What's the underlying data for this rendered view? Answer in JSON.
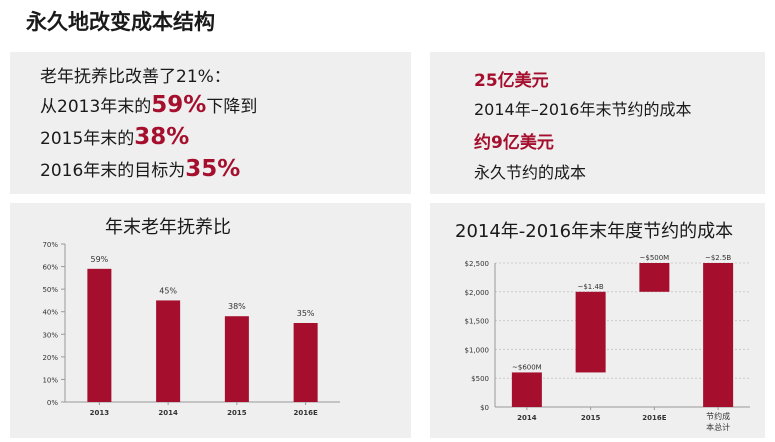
{
  "page": {
    "title": "永久地改变成本结构"
  },
  "left_summary": {
    "line1": "老年抚养比改善了21%：",
    "line2_pre": "从2013年末的",
    "line2_big": "59%",
    "line2_post": "下降到",
    "line3_pre": "2015年末的",
    "line3_big": "38%",
    "line4_pre": "2016年末的目标为",
    "line4_big": "35%"
  },
  "right_summary": {
    "line1": "25亿美元",
    "line2": "2014年–2016年末节约的成本",
    "line3": "约9亿美元",
    "line4": "永久节约的成本"
  },
  "colors": {
    "accent": "#a50f2d",
    "bar": "#a50f2d",
    "panel_bg": "#efefef"
  },
  "chart_data": [
    {
      "type": "bar",
      "title": "年末老年抚养比",
      "categories": [
        "2013",
        "2014",
        "2015",
        "2016E"
      ],
      "values": [
        59,
        45,
        38,
        35
      ],
      "data_labels": [
        "59%",
        "45%",
        "38%",
        "35%"
      ],
      "y_ticks": [
        "0%",
        "10%",
        "20%",
        "30%",
        "40%",
        "50%",
        "60%",
        "70%"
      ],
      "ylim": [
        0,
        70
      ],
      "grid": false,
      "legend": "none"
    },
    {
      "type": "bar",
      "title": "2014年-2016年末年度节约的成本",
      "categories": [
        "2014",
        "2015",
        "2016E",
        "节约成本总计"
      ],
      "bars": [
        {
          "low": 0,
          "high": 600
        },
        {
          "low": 600,
          "high": 2000
        },
        {
          "low": 2000,
          "high": 2500
        },
        {
          "low": 0,
          "high": 2500
        }
      ],
      "data_labels": [
        "~$600M",
        "~$1.4B",
        "~$500M",
        "~$2.5B"
      ],
      "y_ticks": [
        "$0",
        "$500",
        "$1,000",
        "$1,500",
        "$2,000",
        "$2,500"
      ],
      "ylim": [
        0,
        2500
      ],
      "grid": true,
      "legend": "none"
    }
  ]
}
